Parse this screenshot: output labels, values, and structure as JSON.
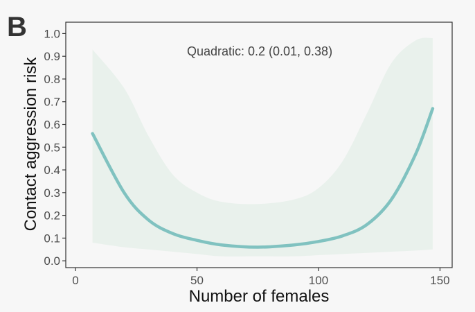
{
  "panel_label": "B",
  "colors": {
    "background": "#f7f7f7",
    "line": "#80c2c0",
    "ribbon": "#e9f1ec",
    "axis": "#333333",
    "text": "#4d4d4d"
  },
  "chart_data": {
    "type": "line",
    "title": "",
    "xlabel": "Number of females",
    "ylabel": "Contact aggression risk",
    "annotation": "Quadratic: 0.2 (0.01, 0.38)",
    "xlim": [
      -4,
      155
    ],
    "ylim": [
      -0.03,
      1.05
    ],
    "xticks": [
      0,
      50,
      100,
      150
    ],
    "yticks": [
      0.0,
      0.1,
      0.2,
      0.3,
      0.4,
      0.5,
      0.6,
      0.7,
      0.8,
      0.9,
      1.0
    ],
    "ytick_labels": [
      "0.0",
      "0.1",
      "0.2",
      "0.3",
      "0.4",
      "0.5",
      "0.6",
      "0.7",
      "0.8",
      "0.9",
      "1.0"
    ],
    "grid": false,
    "legend": "none",
    "series": [
      {
        "x": [
          7,
          20,
          30,
          40,
          50,
          60,
          75,
          90,
          100,
          110,
          120,
          130,
          140,
          147
        ],
        "y": [
          0.56,
          0.3,
          0.18,
          0.12,
          0.09,
          0.07,
          0.06,
          0.07,
          0.085,
          0.11,
          0.16,
          0.27,
          0.47,
          0.67
        ],
        "lower": [
          0.08,
          0.06,
          0.05,
          0.04,
          0.03,
          0.02,
          0.02,
          0.02,
          0.025,
          0.03,
          0.035,
          0.04,
          0.045,
          0.05
        ],
        "upper": [
          0.93,
          0.76,
          0.55,
          0.38,
          0.3,
          0.26,
          0.25,
          0.27,
          0.32,
          0.44,
          0.65,
          0.87,
          0.97,
          0.98
        ]
      }
    ]
  }
}
